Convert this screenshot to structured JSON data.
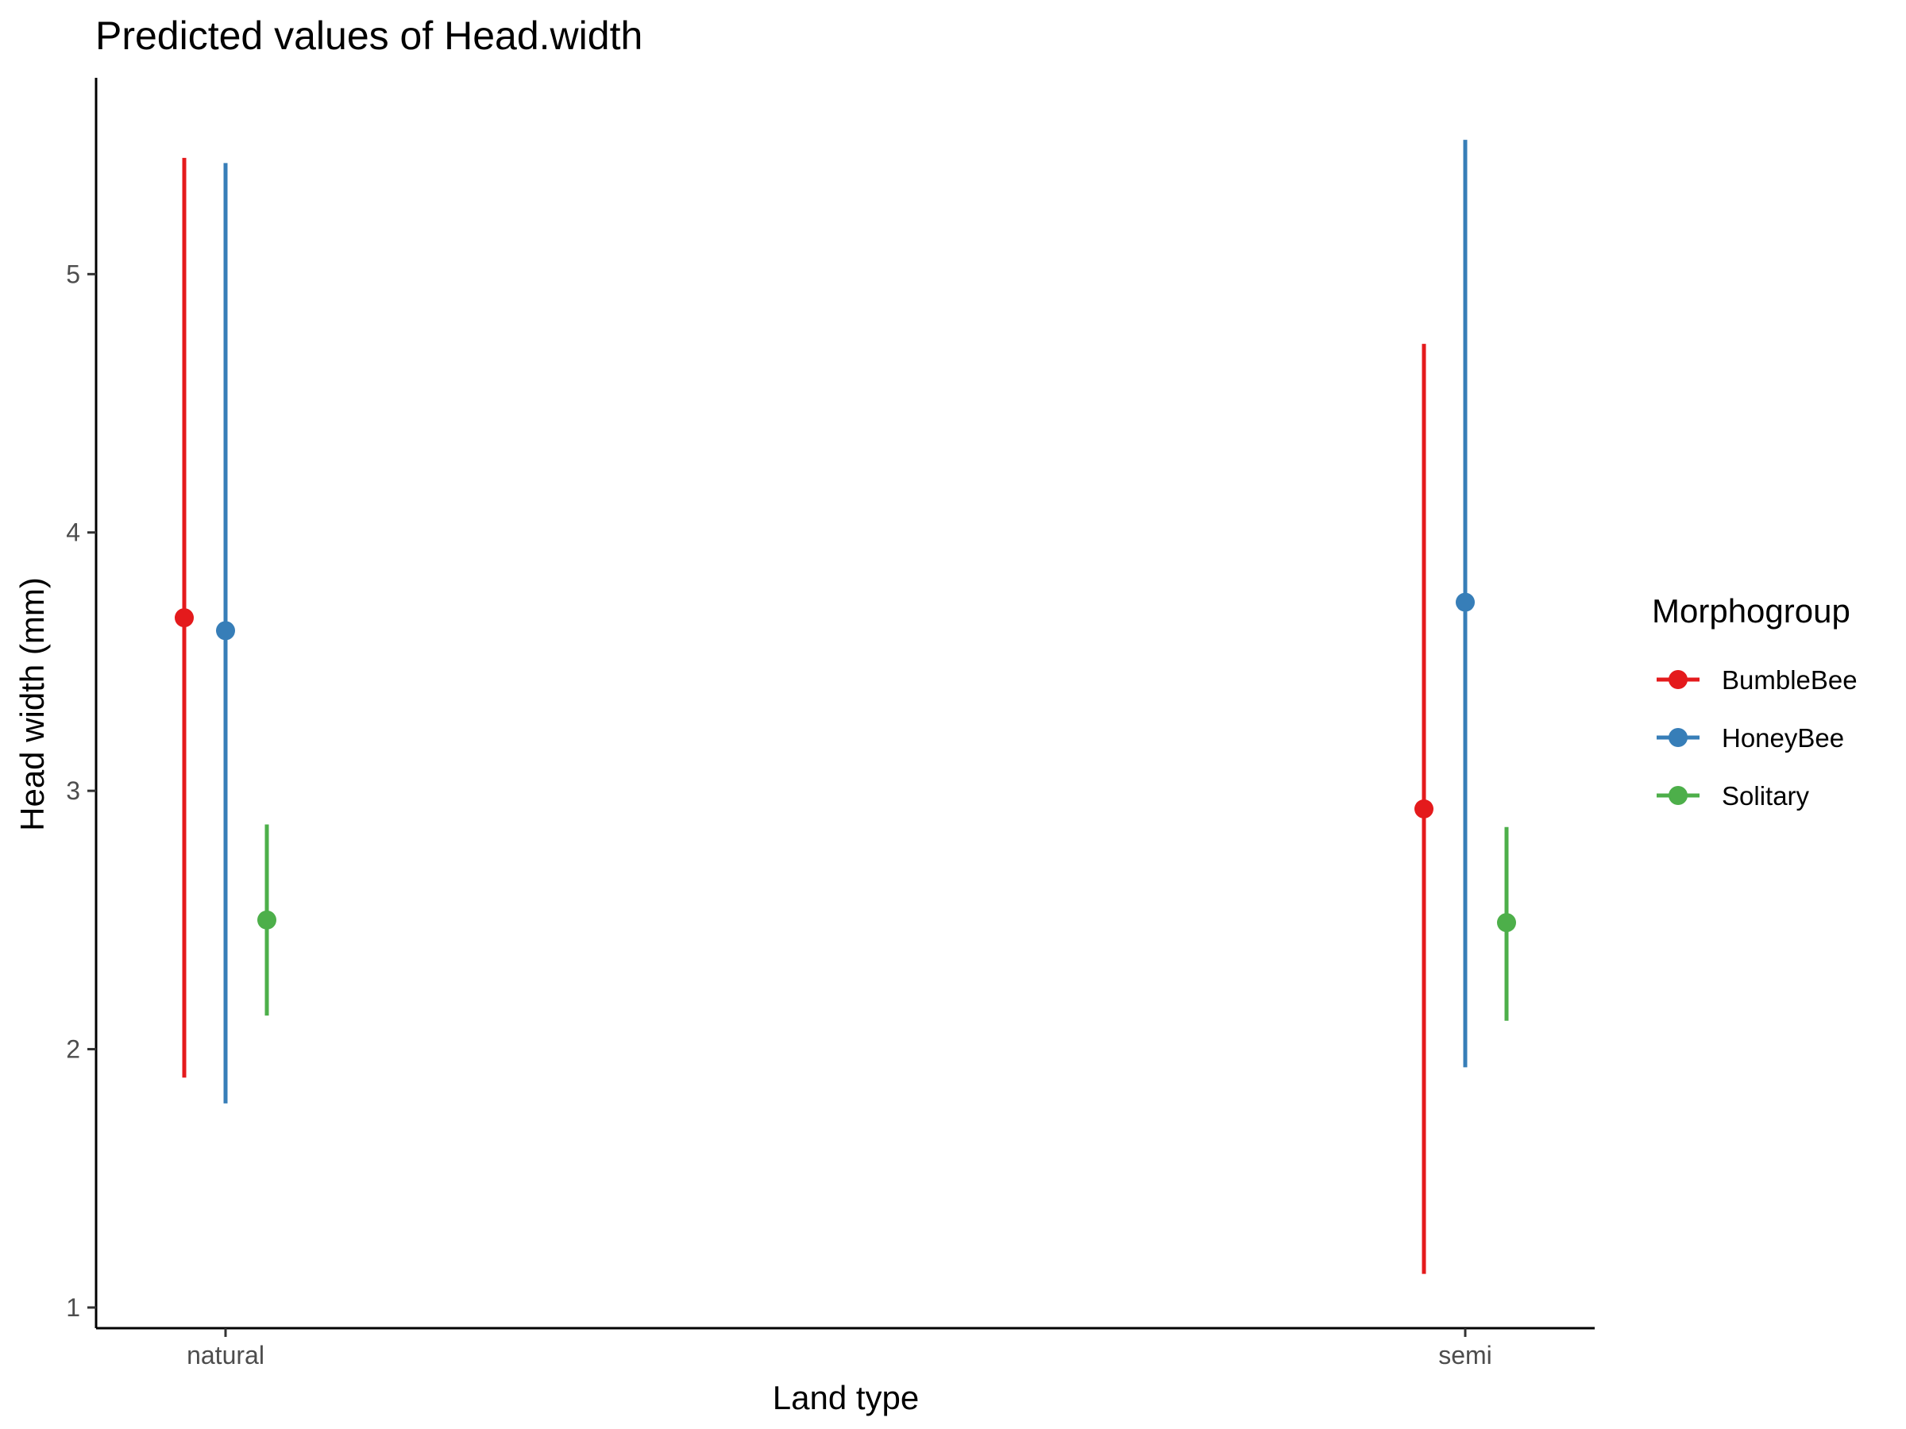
{
  "chart_data": {
    "type": "scatter",
    "subtype": "point-with-errorbars",
    "title": "Predicted values of Head.width",
    "xlabel": "Land type",
    "ylabel": "Head width (mm)",
    "categories": [
      "natural",
      "semi"
    ],
    "ylim": [
      0.92,
      5.76
    ],
    "yticks": [
      1,
      2,
      3,
      4,
      5
    ],
    "grid": false,
    "legend": {
      "title": "Morphogroup",
      "position": "right"
    },
    "series": [
      {
        "name": "BumbleBee",
        "color": "#e41a1c",
        "values": [
          3.67,
          2.93
        ],
        "lower": [
          1.89,
          1.13
        ],
        "upper": [
          5.45,
          4.73
        ]
      },
      {
        "name": "HoneyBee",
        "color": "#377eb8",
        "values": [
          3.62,
          3.73
        ],
        "lower": [
          1.79,
          1.93
        ],
        "upper": [
          5.43,
          5.52
        ]
      },
      {
        "name": "Solitary",
        "color": "#4daf4a",
        "values": [
          2.5,
          2.49
        ],
        "lower": [
          2.13,
          2.11
        ],
        "upper": [
          2.87,
          2.86
        ]
      }
    ]
  }
}
